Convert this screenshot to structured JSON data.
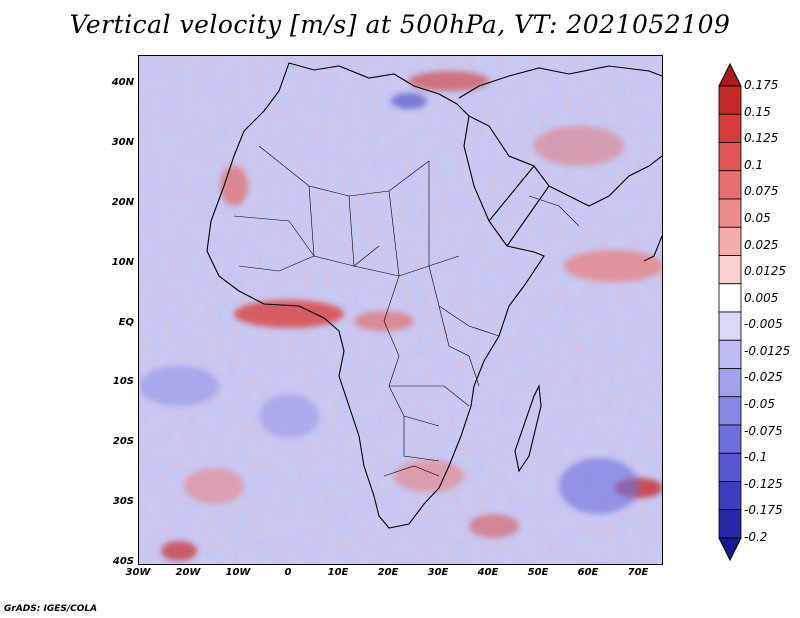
{
  "title": "Vertical velocity [m/s] at 500hPa, VT: 2021052109",
  "credit": "GrADS: IGES/COLA",
  "map": {
    "lat_labels": [
      "40N",
      "30N",
      "20N",
      "10N",
      "EQ",
      "10S",
      "20S",
      "30S",
      "40S"
    ],
    "lon_labels": [
      "30W",
      "20W",
      "10W",
      "0",
      "10E",
      "20E",
      "30E",
      "40E",
      "50E",
      "60E",
      "70E"
    ],
    "region": "Africa, Mediterranean, Arabian Peninsula and surrounding oceans"
  },
  "colorbar": {
    "labels": [
      "0.175",
      "0.15",
      "0.125",
      "0.1",
      "0.075",
      "0.05",
      "0.025",
      "0.0125",
      "0.005",
      "-0.005",
      "-0.0125",
      "-0.025",
      "-0.05",
      "-0.075",
      "-0.1",
      "-0.125",
      "-0.175",
      "-0.2"
    ],
    "colors": [
      "#a81c1c",
      "#c42a2a",
      "#d63c3c",
      "#e05555",
      "#e86f6f",
      "#ee8c8c",
      "#f4abab",
      "#f9cfcf",
      "#ffffff",
      "#d8d8f8",
      "#bcbcf2",
      "#a2a2ec",
      "#8888e4",
      "#6e6edc",
      "#5555d0",
      "#3d3dc0",
      "#2828a8",
      "#1a1a90"
    ]
  }
}
